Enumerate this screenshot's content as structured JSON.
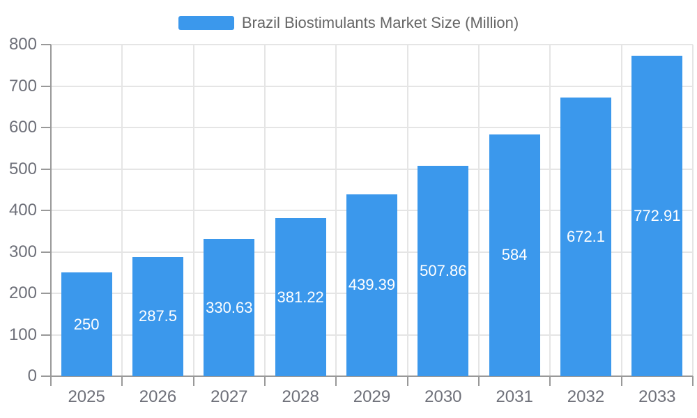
{
  "legend": {
    "label": "Brazil Biostimulants Market Size (Million)"
  },
  "colors": {
    "bar": "#3B98EC",
    "grid_line": "#E5E5E5",
    "axis_line": "#999999",
    "axis_label": "#6E7079",
    "legend_label": "#666666",
    "value_label": "#FFFFFF",
    "background": "#FFFFFF"
  },
  "chart_data": {
    "type": "bar",
    "title": "Brazil Biostimulants Market Size (Million)",
    "categories": [
      "2025",
      "2026",
      "2027",
      "2028",
      "2029",
      "2030",
      "2031",
      "2032",
      "2033"
    ],
    "series": [
      {
        "name": "Brazil Biostimulants Market Size (Million)",
        "values": [
          250,
          287.5,
          330.63,
          381.22,
          439.39,
          507.86,
          584,
          672.1,
          772.91
        ],
        "data_labels": [
          "250",
          "287.5",
          "330.63",
          "381.22",
          "439.39",
          "507.86",
          "584",
          "672.1",
          "772.91"
        ]
      }
    ],
    "xlabel": "",
    "ylabel": "",
    "ylim": [
      0,
      800
    ],
    "ytick_interval": 100,
    "ytick_labels": [
      "0",
      "100",
      "200",
      "300",
      "400",
      "500",
      "600",
      "700",
      "800"
    ],
    "grid": true,
    "legend_position": "top-center",
    "value_label_position": "inside-center"
  }
}
